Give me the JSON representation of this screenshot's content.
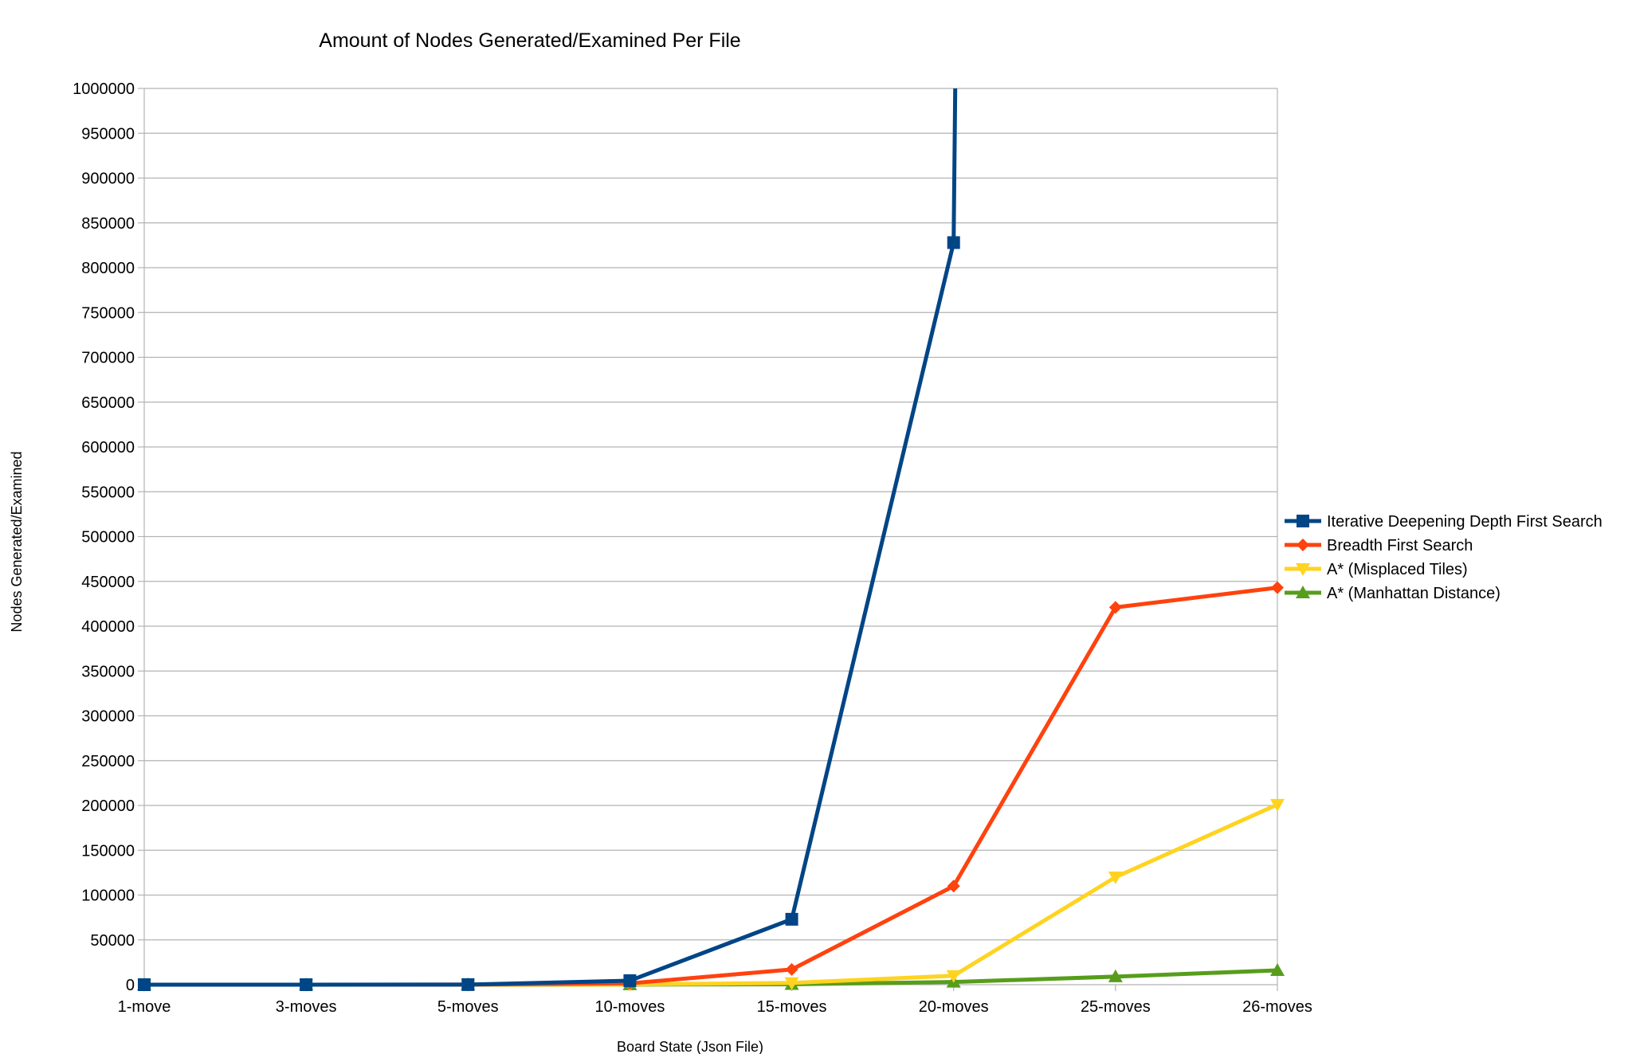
{
  "chart_data": {
    "type": "line",
    "title": "Amount of Nodes Generated/Examined Per File",
    "xlabel": "Board State (Json File)",
    "ylabel": "Nodes Generated/Examined",
    "categories": [
      "1-move",
      "3-moves",
      "5-moves",
      "10-moves",
      "15-moves",
      "20-moves",
      "25-moves",
      "26-moves"
    ],
    "ylim": [
      0,
      1000000
    ],
    "yticks": [
      0,
      50000,
      100000,
      150000,
      200000,
      250000,
      300000,
      350000,
      400000,
      450000,
      500000,
      550000,
      600000,
      650000,
      700000,
      750000,
      800000,
      850000,
      900000,
      950000,
      1000000
    ],
    "grid": true,
    "legend_position": "right",
    "series": [
      {
        "name": "Iterative Deepening Depth First Search",
        "color": "#004586",
        "marker": "square",
        "values": [
          1,
          10,
          100,
          4500,
          73000,
          828000,
          1000000,
          null
        ],
        "clipped_above_ylim": true
      },
      {
        "name": "Breadth First Search",
        "color": "#ff420e",
        "marker": "diamond",
        "values": [
          1,
          10,
          60,
          1500,
          17000,
          110000,
          421000,
          443000
        ]
      },
      {
        "name": "A* (Misplaced Tiles)",
        "color": "#ffd320",
        "marker": "triangle-down",
        "values": [
          1,
          5,
          20,
          300,
          2000,
          10000,
          120000,
          201000
        ]
      },
      {
        "name": "A* (Manhattan Distance)",
        "color": "#579d1c",
        "marker": "triangle-up",
        "values": [
          1,
          5,
          15,
          100,
          500,
          3000,
          9000,
          16000
        ]
      }
    ]
  }
}
